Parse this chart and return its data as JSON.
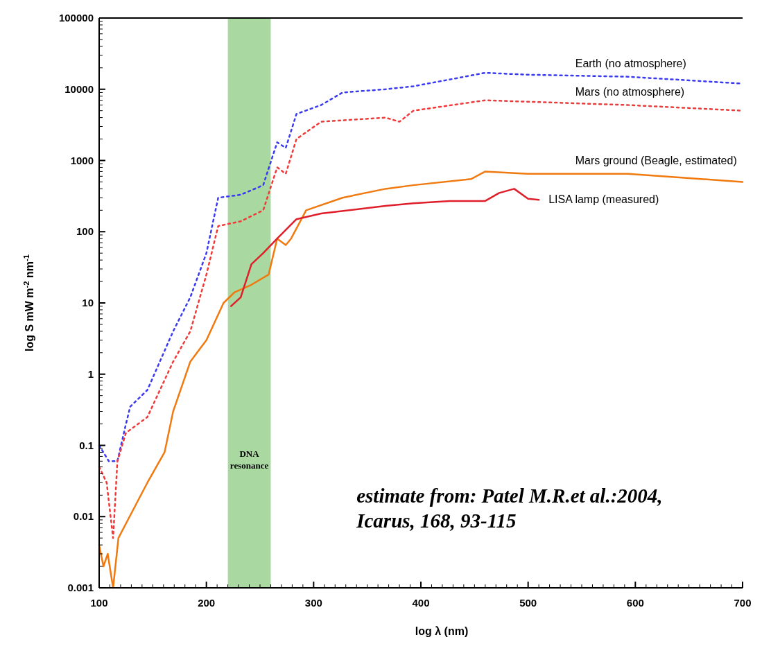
{
  "chart_data": {
    "type": "line",
    "xlabel": "log λ (nm)",
    "ylabel": "log S mW m$^{-2}$ nm$^{-1}$",
    "log": "y",
    "grid": false,
    "xlim": [
      100,
      700
    ],
    "xticks": [
      100,
      200,
      300,
      400,
      500,
      600,
      700
    ],
    "ylim": [
      0.001,
      100000
    ],
    "yticks": [
      0.001,
      0.01,
      0.1,
      1,
      10,
      100,
      1000,
      10000,
      100000
    ],
    "bands": [
      {
        "axis": "x",
        "from": 220,
        "to": 260,
        "label": "DNA resonance",
        "color": "#a9d9a0"
      }
    ],
    "annotations": [
      "estimate from: Patel M.R.et al.:2004,",
      "Icarus, 168, 93-115"
    ],
    "series": [
      {
        "name": "Earth (no atmosphere)",
        "color": "#3a3af0",
        "line_style": "dotted",
        "x": [
          100,
          109,
          117,
          125,
          129,
          145,
          169,
          185,
          200,
          211,
          232,
          253,
          266,
          274,
          284,
          307,
          327,
          367,
          393,
          460,
          500,
          593,
          700
        ],
        "values": [
          0.1,
          0.06,
          0.06,
          0.2,
          0.35,
          0.6,
          4,
          12,
          50,
          300,
          330,
          450,
          1800,
          1500,
          4500,
          6000,
          9000,
          10000,
          11000,
          17000,
          16000,
          15000,
          12000
        ]
      },
      {
        "name": "Mars (no atmosphere)",
        "color": "#f03a3a",
        "line_style": "dotted",
        "x": [
          100,
          107,
          113,
          117,
          125,
          145,
          169,
          185,
          200,
          211,
          232,
          253,
          266,
          274,
          284,
          307,
          367,
          380,
          393,
          460,
          593,
          700
        ],
        "values": [
          0.05,
          0.03,
          0.005,
          0.06,
          0.15,
          0.25,
          1.5,
          4,
          25,
          120,
          140,
          200,
          800,
          650,
          2000,
          3500,
          4000,
          3500,
          5000,
          7000,
          6000,
          5000
        ]
      },
      {
        "name": "Mars ground (Beagle, estimated)",
        "color": "#f07a10",
        "line_style": "solid",
        "x": [
          100,
          104,
          108,
          113,
          118,
          125,
          145,
          161,
          169,
          185,
          200,
          216,
          226,
          242,
          258,
          266,
          274,
          279,
          293,
          327,
          367,
          393,
          447,
          460,
          500,
          593,
          700
        ],
        "values": [
          0.004,
          0.002,
          0.003,
          0.001,
          0.005,
          0.008,
          0.03,
          0.08,
          0.3,
          1.5,
          3,
          10,
          14,
          18,
          25,
          80,
          65,
          80,
          200,
          300,
          400,
          450,
          550,
          700,
          650,
          650,
          500
        ]
      },
      {
        "name": "LISA lamp (measured)",
        "color": "#e01e2a",
        "line_style": "solid",
        "x": [
          223,
          232,
          242,
          253,
          266,
          284,
          307,
          367,
          393,
          427,
          460,
          473,
          487,
          500,
          510
        ],
        "values": [
          9,
          12,
          35,
          50,
          80,
          150,
          180,
          230,
          250,
          270,
          270,
          350,
          400,
          290,
          280
        ]
      }
    ]
  }
}
